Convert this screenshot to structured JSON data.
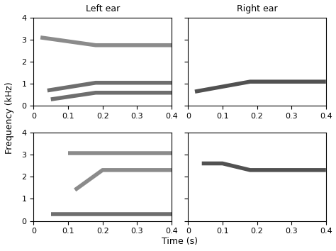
{
  "figure": {
    "xlabel": "Time (s)",
    "ylabel": "Frequency (kHz)"
  },
  "chart_data": [
    {
      "type": "line",
      "title": "Left ear",
      "xlim": [
        0,
        0.4
      ],
      "ylim": [
        0,
        4
      ],
      "xticks": [
        0,
        0.1,
        0.2,
        0.3,
        0.4
      ],
      "yticks": [
        0,
        1,
        2,
        3,
        4
      ],
      "series": [
        {
          "x": [
            0.05,
            0.18,
            0.4
          ],
          "values": [
            0.3,
            0.6,
            0.6
          ],
          "color": "#555555"
        },
        {
          "x": [
            0.04,
            0.18,
            0.4
          ],
          "values": [
            0.7,
            1.05,
            1.05
          ],
          "color": "#555555"
        },
        {
          "x": [
            0.02,
            0.18,
            0.4
          ],
          "values": [
            3.1,
            2.75,
            2.75
          ],
          "color": "#777777"
        }
      ]
    },
    {
      "type": "line",
      "title": "Right ear",
      "xlim": [
        0,
        0.4
      ],
      "ylim": [
        0,
        4
      ],
      "xticks": [
        0,
        0.1,
        0.2,
        0.3,
        0.4
      ],
      "yticks": [
        0,
        1,
        2,
        3,
        4
      ],
      "tick_labels": "x",
      "series": [
        {
          "x": [
            0.02,
            0.18,
            0.4
          ],
          "values": [
            0.65,
            1.1,
            1.1
          ],
          "color": "#333333"
        }
      ]
    },
    {
      "type": "line",
      "xlim": [
        0,
        0.4
      ],
      "ylim": [
        0,
        4
      ],
      "xticks": [
        0,
        0.1,
        0.2,
        0.3,
        0.4
      ],
      "yticks": [
        0,
        1,
        2,
        3,
        4
      ],
      "series": [
        {
          "x": [
            0.05,
            0.4
          ],
          "values": [
            0.3,
            0.3
          ],
          "color": "#555555"
        },
        {
          "x": [
            0.12,
            0.2,
            0.4
          ],
          "values": [
            1.4,
            2.3,
            2.3
          ],
          "color": "#777777"
        },
        {
          "x": [
            0.1,
            0.4
          ],
          "values": [
            3.05,
            3.05
          ],
          "color": "#777777"
        }
      ]
    },
    {
      "type": "line",
      "xlim": [
        0,
        0.4
      ],
      "ylim": [
        0,
        4
      ],
      "xticks": [
        0,
        0.1,
        0.2,
        0.3,
        0.4
      ],
      "yticks": [
        0,
        1,
        2,
        3,
        4
      ],
      "tick_labels": "x",
      "series": [
        {
          "x": [
            0.04,
            0.1,
            0.18,
            0.4
          ],
          "values": [
            2.6,
            2.6,
            2.3,
            2.3
          ],
          "color": "#333333"
        }
      ]
    }
  ]
}
